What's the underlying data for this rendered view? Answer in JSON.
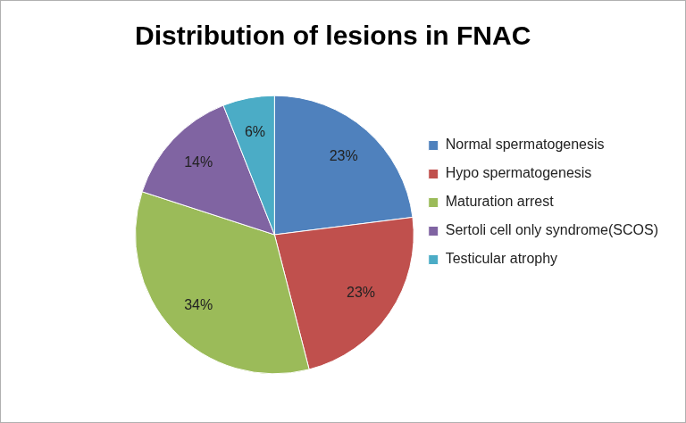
{
  "chart_data": {
    "type": "pie",
    "title": "Distribution of lesions in FNAC",
    "categories": [
      "Normal spermatogenesis",
      "Hypo spermatogenesis",
      "Maturation arrest",
      "Sertoli cell only syndrome(SCOS)",
      "Testicular atrophy"
    ],
    "values": [
      23,
      23,
      34,
      14,
      6
    ],
    "value_labels": [
      "23%",
      "23%",
      "34%",
      "14%",
      "6%"
    ],
    "colors": [
      "#4f81bd",
      "#c0504d",
      "#9bbb59",
      "#8064a2",
      "#4bacc6"
    ],
    "legend": "right",
    "data_labels": true
  }
}
